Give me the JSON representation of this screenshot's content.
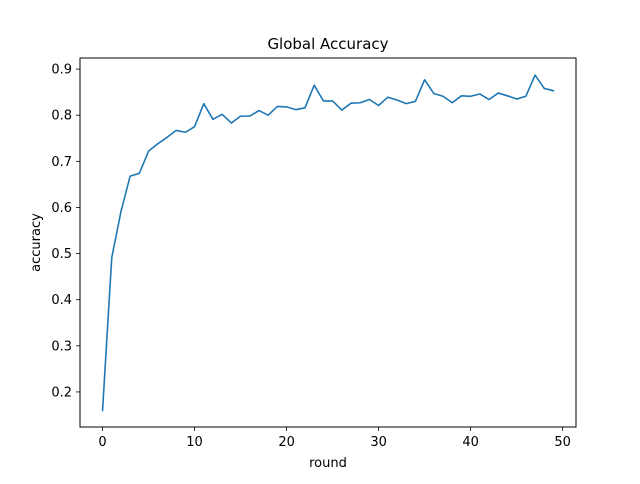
{
  "chart_data": {
    "type": "line",
    "title": "Global Accuracy",
    "xlabel": "round",
    "ylabel": "accuracy",
    "xlim": [
      -2.45,
      51.45
    ],
    "ylim": [
      0.124,
      0.924
    ],
    "xticks": [
      0,
      10,
      20,
      30,
      40,
      50
    ],
    "xtick_labels": [
      "0",
      "10",
      "20",
      "30",
      "40",
      "50"
    ],
    "yticks": [
      0.2,
      0.3,
      0.4,
      0.5,
      0.6,
      0.7,
      0.8,
      0.9
    ],
    "ytick_labels": [
      "0.2",
      "0.3",
      "0.4",
      "0.5",
      "0.6",
      "0.7",
      "0.8",
      "0.9"
    ],
    "grid": false,
    "legend": "none",
    "series": [
      {
        "color": "#1f77b4",
        "x": [
          0,
          1,
          2,
          3,
          4,
          5,
          6,
          7,
          8,
          9,
          10,
          11,
          12,
          13,
          14,
          15,
          16,
          17,
          18,
          19,
          20,
          21,
          22,
          23,
          24,
          25,
          26,
          27,
          28,
          29,
          30,
          31,
          32,
          33,
          34,
          35,
          36,
          37,
          38,
          39,
          40,
          41,
          42,
          43,
          44,
          45,
          46,
          47,
          48,
          49
        ],
        "y": [
          0.16,
          0.491,
          0.591,
          0.668,
          0.674,
          0.722,
          0.738,
          0.752,
          0.767,
          0.763,
          0.775,
          0.825,
          0.791,
          0.802,
          0.783,
          0.798,
          0.798,
          0.81,
          0.8,
          0.819,
          0.818,
          0.812,
          0.816,
          0.865,
          0.831,
          0.831,
          0.811,
          0.826,
          0.827,
          0.834,
          0.821,
          0.839,
          0.833,
          0.825,
          0.83,
          0.877,
          0.847,
          0.841,
          0.827,
          0.842,
          0.841,
          0.846,
          0.834,
          0.848,
          0.842,
          0.835,
          0.841,
          0.887,
          0.858,
          0.853
        ]
      }
    ]
  }
}
